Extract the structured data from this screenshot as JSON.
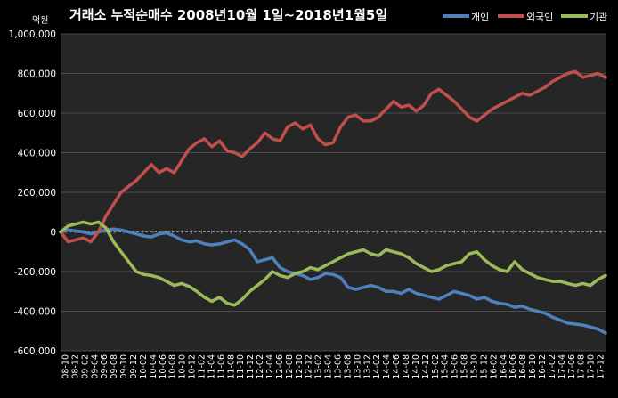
{
  "chart_data": {
    "type": "line",
    "title": "거래소 누적순매수 2008년10월 1일~2018년1월5일",
    "ylabel": "억원",
    "ylim": [
      -600000,
      1000000
    ],
    "yticks": [
      -600000,
      -400000,
      -200000,
      0,
      200000,
      400000,
      600000,
      800000,
      1000000
    ],
    "ytick_labels": [
      "-600,000",
      "-400,000",
      "-200,000",
      "0",
      "200,000",
      "400,000",
      "600,000",
      "800,000",
      "1,000,000"
    ],
    "x_labels": [
      "08-10",
      "08-12",
      "09-02",
      "09-04",
      "09-06",
      "09-08",
      "09-10",
      "09-12",
      "10-02",
      "10-04",
      "10-06",
      "10-08",
      "10-10",
      "10-12",
      "11-02",
      "11-04",
      "11-06",
      "11-08",
      "11-10",
      "11-12",
      "12-02",
      "12-04",
      "12-06",
      "12-08",
      "12-10",
      "12-12",
      "13-02",
      "13-04",
      "13-06",
      "13-08",
      "13-10",
      "13-12",
      "14-02",
      "14-04",
      "14-06",
      "14-08",
      "14-10",
      "14-12",
      "15-02",
      "15-04",
      "15-06",
      "15-08",
      "15-10",
      "15-12",
      "16-02",
      "16-04",
      "16-06",
      "16-08",
      "16-10",
      "16-12",
      "17-02",
      "17-04",
      "17-06",
      "17-08",
      "17-10",
      "17-12"
    ],
    "grid": true,
    "legend_position": "top-right",
    "series": [
      {
        "name": "개인",
        "color": "#4f81bd",
        "values": [
          0,
          10000,
          5000,
          0,
          -10000,
          0,
          10000,
          15000,
          10000,
          0,
          -10000,
          -20000,
          -25000,
          -10000,
          -5000,
          -20000,
          -40000,
          -50000,
          -45000,
          -60000,
          -65000,
          -60000,
          -50000,
          -40000,
          -60000,
          -90000,
          -150000,
          -140000,
          -130000,
          -180000,
          -200000,
          -210000,
          -220000,
          -240000,
          -230000,
          -210000,
          -215000,
          -230000,
          -280000,
          -290000,
          -280000,
          -270000,
          -280000,
          -300000,
          -300000,
          -310000,
          -290000,
          -310000,
          -320000,
          -330000,
          -340000,
          -320000,
          -300000,
          -310000,
          -320000,
          -340000,
          -330000,
          -350000,
          -360000,
          -365000,
          -380000,
          -375000,
          -390000,
          -400000,
          -410000,
          -430000,
          -445000,
          -460000,
          -465000,
          -470000,
          -480000,
          -490000,
          -510000
        ]
      },
      {
        "name": "외국인",
        "color": "#c0504d",
        "values": [
          0,
          -50000,
          -40000,
          -30000,
          -50000,
          0,
          80000,
          140000,
          200000,
          230000,
          260000,
          300000,
          340000,
          300000,
          320000,
          300000,
          360000,
          420000,
          450000,
          470000,
          430000,
          460000,
          410000,
          400000,
          380000,
          420000,
          450000,
          500000,
          470000,
          460000,
          530000,
          550000,
          520000,
          540000,
          470000,
          440000,
          450000,
          530000,
          580000,
          590000,
          560000,
          560000,
          580000,
          620000,
          660000,
          630000,
          640000,
          610000,
          640000,
          700000,
          720000,
          690000,
          660000,
          620000,
          580000,
          560000,
          590000,
          620000,
          640000,
          660000,
          680000,
          700000,
          690000,
          710000,
          730000,
          760000,
          780000,
          800000,
          810000,
          780000,
          790000,
          800000,
          780000
        ]
      },
      {
        "name": "기관",
        "color": "#9bbb59",
        "values": [
          0,
          30000,
          40000,
          50000,
          40000,
          50000,
          20000,
          -50000,
          -100000,
          -150000,
          -200000,
          -215000,
          -220000,
          -230000,
          -250000,
          -270000,
          -260000,
          -275000,
          -300000,
          -330000,
          -350000,
          -330000,
          -360000,
          -370000,
          -340000,
          -300000,
          -270000,
          -240000,
          -200000,
          -220000,
          -230000,
          -210000,
          -200000,
          -180000,
          -190000,
          -170000,
          -150000,
          -130000,
          -110000,
          -100000,
          -90000,
          -110000,
          -120000,
          -90000,
          -100000,
          -110000,
          -130000,
          -160000,
          -180000,
          -200000,
          -190000,
          -170000,
          -160000,
          -150000,
          -110000,
          -100000,
          -140000,
          -170000,
          -190000,
          -200000,
          -150000,
          -190000,
          -210000,
          -230000,
          -240000,
          -250000,
          -250000,
          -260000,
          -270000,
          -260000,
          -270000,
          -240000,
          -220000
        ]
      }
    ]
  }
}
